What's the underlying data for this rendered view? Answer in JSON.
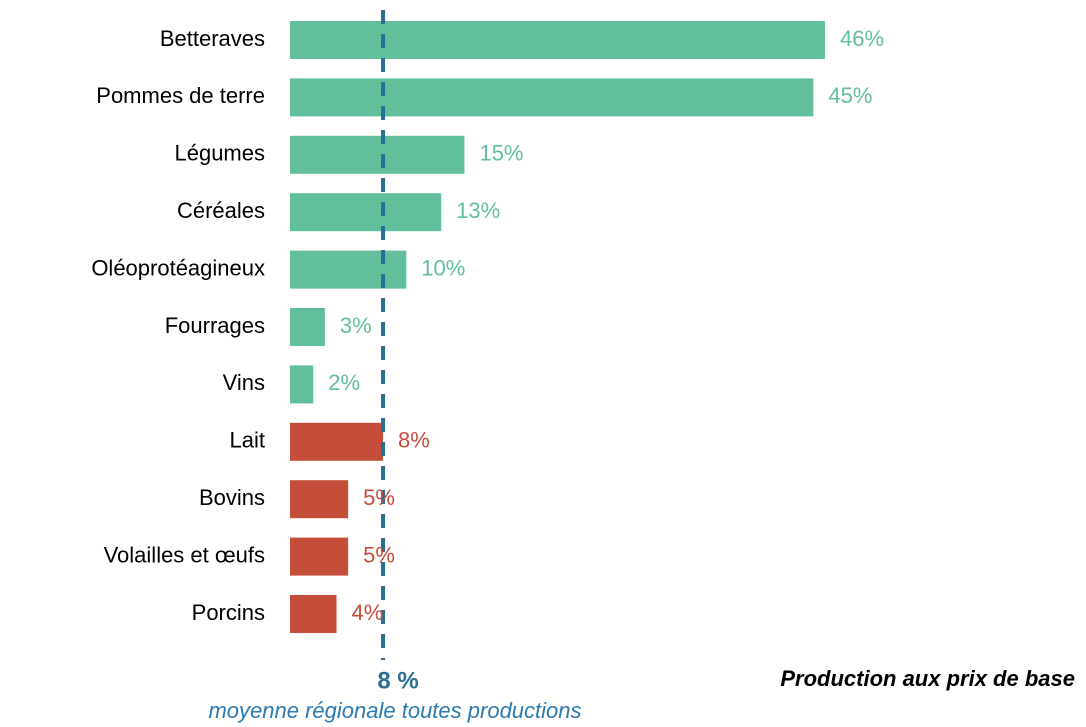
{
  "chart_data": {
    "type": "bar",
    "orientation": "horizontal",
    "categories": [
      "Betteraves",
      "Pommes de terre",
      "Légumes",
      "Céréales",
      "Oléoprotéagineux",
      "Fourrages",
      "Vins",
      "Lait",
      "Bovins",
      "Volailles et œufs",
      "Porcins"
    ],
    "values": [
      46,
      45,
      15,
      13,
      10,
      3,
      2,
      8,
      5,
      5,
      4
    ],
    "value_labels": [
      "46%",
      "45%",
      "15%",
      "13%",
      "10%",
      "3%",
      "2%",
      "8%",
      "5%",
      "5%",
      "4%"
    ],
    "colors": [
      "#62bf9b",
      "#62bf9b",
      "#62bf9b",
      "#62bf9b",
      "#62bf9b",
      "#62bf9b",
      "#62bf9b",
      "#c44e3a",
      "#c44e3a",
      "#c44e3a",
      "#c44e3a"
    ],
    "reference_line": {
      "value": 8,
      "label": "8 %",
      "caption": "moyenne régionale toutes productions",
      "color": "#2b6e94"
    },
    "note": "Production aux prix de base"
  }
}
